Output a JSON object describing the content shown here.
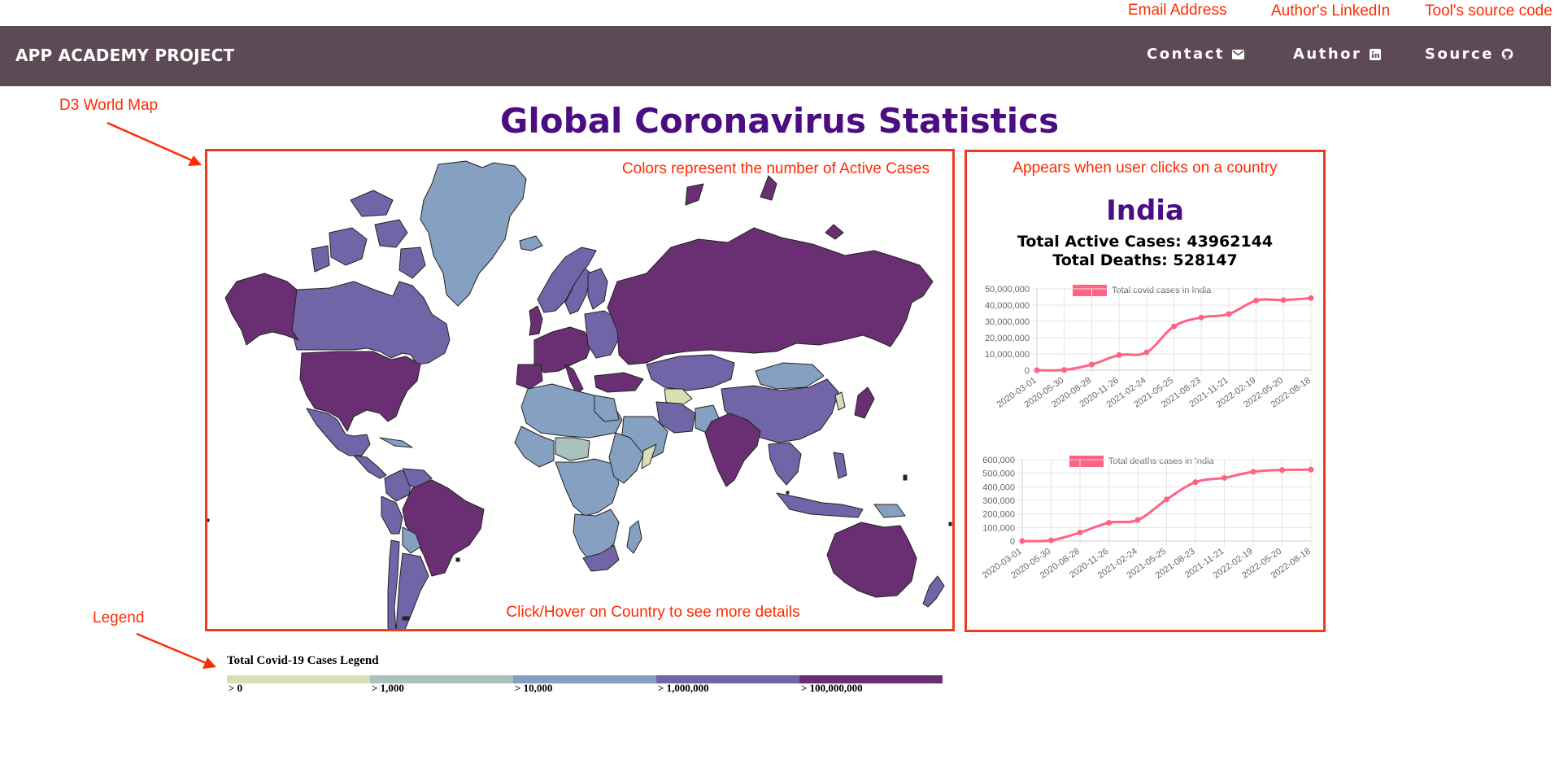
{
  "annotations": {
    "email": "Email Address",
    "linkedin": "Author's LinkedIn",
    "source": "Tool's source code",
    "map": "D3 World Map",
    "legend": "Legend",
    "colors_note": "Colors represent the number of Active Cases",
    "hover_note": "Click/Hover on Country to see more details",
    "click_note": "Appears when user clicks on a country"
  },
  "navbar": {
    "brand": "APP ACADEMY PROJECT",
    "links": [
      {
        "label": "Contact",
        "icon": "envelope-icon"
      },
      {
        "label": "Author",
        "icon": "linkedin-icon"
      },
      {
        "label": "Source",
        "icon": "github-icon"
      }
    ]
  },
  "page_title": "Global Coronavirus Statistics",
  "details": {
    "country": "India",
    "active_cases": "Total Active Cases: 43962144",
    "deaths": "Total Deaths: 528147"
  },
  "legend": {
    "title": "Total Covid-19 Cases Legend",
    "items": [
      {
        "label": "> 0",
        "color": "#d8dfb4"
      },
      {
        "label": "> 1,000",
        "color": "#a8c3be"
      },
      {
        "label": "> 10,000",
        "color": "#85a0c1"
      },
      {
        "label": "> 1,000,000",
        "color": "#7165a8"
      },
      {
        "label": "> 100,000,000",
        "color": "#6a2f72"
      }
    ]
  },
  "colors": {
    "navbar": "#5e4a55",
    "title": "#4b0d82",
    "annotation": "#ff2a00",
    "line": "#ff6384"
  },
  "chart_data": [
    {
      "type": "line",
      "legend": "Total covid cases in India",
      "x": [
        "2020-03-01",
        "2020-05-30",
        "2020-08-28",
        "2020-11-26",
        "2021-02-24",
        "2021-05-25",
        "2021-08-23",
        "2021-11-21",
        "2022-02-19",
        "2022-05-20",
        "2022-08-18"
      ],
      "values": [
        3,
        190000,
        3500000,
        9300000,
        11000000,
        26900000,
        32400000,
        34500000,
        42800000,
        43100000,
        44300000
      ],
      "ylim": [
        0,
        50000000
      ],
      "yticks": [
        "0",
        "10,000,000",
        "20,000,000",
        "30,000,000",
        "40,000,000",
        "50,000,000"
      ],
      "grid": true,
      "legend_position": "top"
    },
    {
      "type": "line",
      "legend": "Total deaths cases in India",
      "x": [
        "2020-03-01",
        "2020-05-30",
        "2020-08-28",
        "2020-11-26",
        "2021-02-24",
        "2021-05-25",
        "2021-08-23",
        "2021-11-21",
        "2022-02-19",
        "2022-05-20",
        "2022-08-18"
      ],
      "values": [
        0,
        5200,
        62500,
        135000,
        156000,
        307000,
        434000,
        466000,
        511000,
        524000,
        527000
      ],
      "ylim": [
        0,
        600000
      ],
      "yticks": [
        "0",
        "100,000",
        "200,000",
        "300,000",
        "400,000",
        "500,000",
        "600,000"
      ],
      "grid": true,
      "legend_position": "top"
    }
  ]
}
